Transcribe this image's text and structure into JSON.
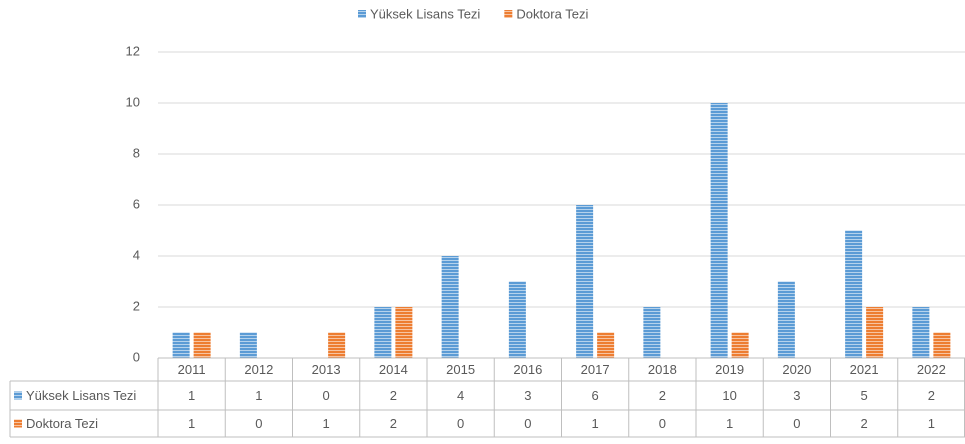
{
  "chart_data": {
    "type": "bar",
    "categories": [
      "2011",
      "2012",
      "2013",
      "2014",
      "2015",
      "2016",
      "2017",
      "2018",
      "2019",
      "2020",
      "2021",
      "2022"
    ],
    "series": [
      {
        "name": "Yüksek Lisans Tezi",
        "color": "#5b9bd5",
        "values": [
          1,
          1,
          0,
          2,
          4,
          3,
          6,
          2,
          10,
          3,
          5,
          2
        ]
      },
      {
        "name": "Doktora Tezi",
        "color": "#ed7d31",
        "values": [
          1,
          0,
          1,
          2,
          0,
          0,
          1,
          0,
          1,
          0,
          2,
          1
        ]
      }
    ],
    "ylim": [
      0,
      12
    ],
    "yticks": [
      0,
      2,
      4,
      6,
      8,
      10,
      12
    ],
    "grid": true,
    "legend": "top",
    "data_table": true
  }
}
